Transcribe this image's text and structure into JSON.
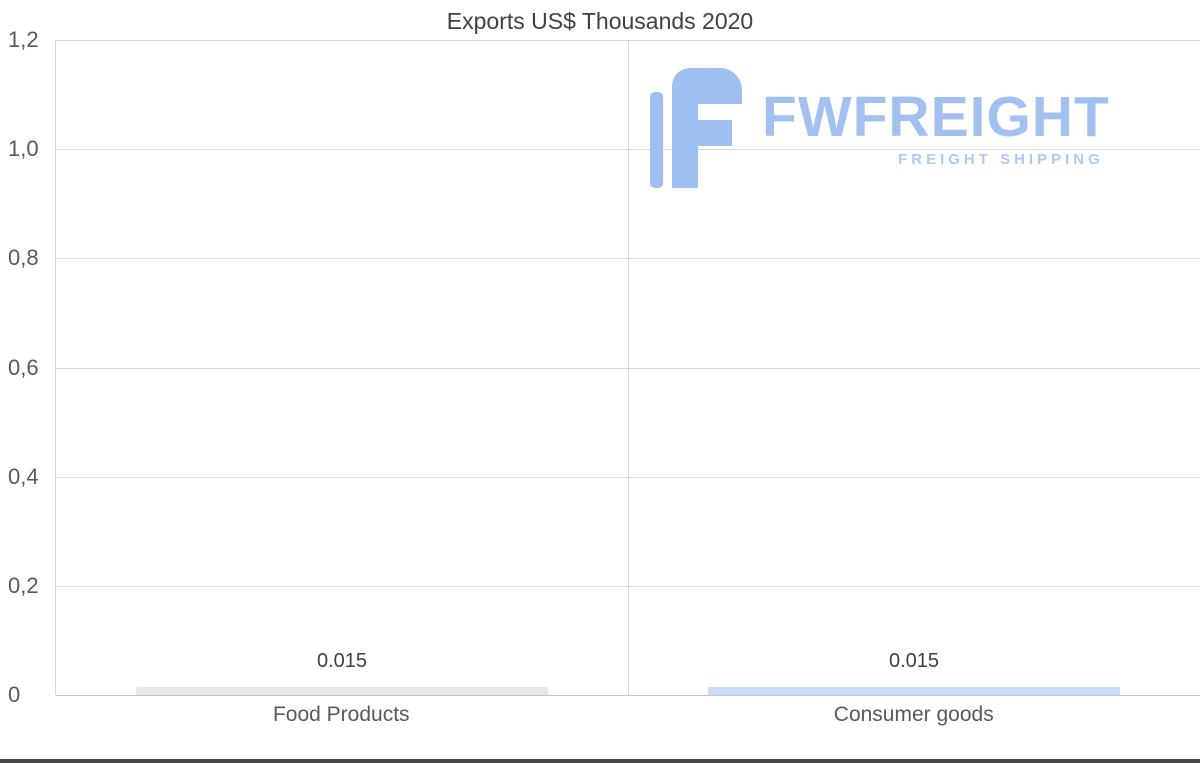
{
  "chart_data": {
    "type": "bar",
    "title": "Exports US$ Thousands 2020",
    "categories": [
      "Food Products",
      "Consumer goods"
    ],
    "values": [
      0.015,
      0.015
    ],
    "value_labels": [
      "0.015",
      "0.015"
    ],
    "bar_colors": [
      "#e7e7e7",
      "#c7dcf8"
    ],
    "xlabel": "",
    "ylabel": "",
    "ylim": [
      0,
      1.2
    ],
    "yticks": [
      0,
      0.2,
      0.4,
      0.6,
      0.8,
      1.0,
      1.2
    ],
    "ytick_labels": [
      "0",
      "0,2",
      "0,4",
      "0,6",
      "0,8",
      "1,0",
      "1,2"
    ],
    "grid": true,
    "legend_position": "none"
  },
  "logo": {
    "name": "FWFREIGHT",
    "tagline": "FREIGHT SHIPPING",
    "color": "#9ec0f0",
    "tagline_color": "#aec9f3"
  }
}
